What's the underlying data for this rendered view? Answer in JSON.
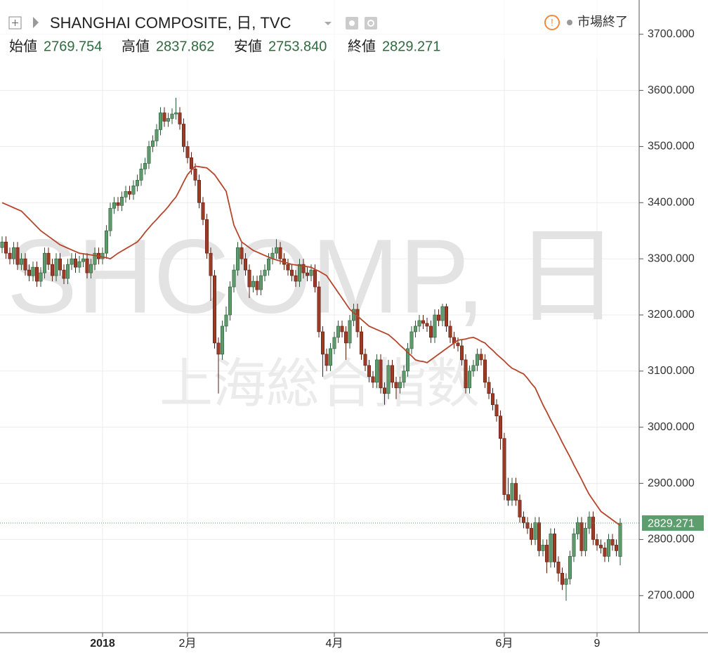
{
  "header": {
    "title": "SHANGHAI COMPOSITE, 日, TVC",
    "status": "市場終了",
    "ohlc_labels": {
      "open": "始値",
      "high": "高値",
      "low": "安値",
      "close": "終値"
    }
  },
  "watermark": {
    "symbol": "SHCOMP, 日",
    "name": "上海総合指数"
  },
  "chart_data": {
    "type": "candlestick",
    "categories": [
      null,
      null,
      null,
      null,
      null,
      null,
      null,
      null,
      null,
      null,
      null,
      null,
      null,
      null,
      null,
      null,
      null,
      null,
      null,
      null,
      null,
      null,
      null,
      null,
      null,
      null,
      "2018",
      null,
      null,
      null,
      null,
      null,
      null,
      null,
      null,
      null,
      null,
      null,
      null,
      null,
      null,
      null,
      null,
      null,
      null,
      null,
      null,
      null,
      "2月",
      null,
      null,
      null,
      null,
      null,
      null,
      null,
      null,
      null,
      null,
      null,
      null,
      null,
      null,
      null,
      null,
      null,
      null,
      null,
      null,
      null,
      null,
      null,
      null,
      null,
      null,
      null,
      null,
      null,
      null,
      null,
      null,
      null,
      null,
      null,
      null,
      null,
      "4月",
      null,
      null,
      null,
      null,
      null,
      null,
      null,
      null,
      null,
      null,
      null,
      null,
      null,
      null,
      null,
      null,
      null,
      null,
      null,
      null,
      null,
      null,
      null,
      null,
      null,
      null,
      null,
      null,
      null,
      null,
      null,
      null,
      null,
      null,
      null,
      null,
      null,
      null,
      null,
      null,
      null,
      null,
      null,
      "6月",
      null,
      null,
      null,
      null,
      null,
      null,
      null,
      null,
      null,
      null,
      null,
      null,
      null,
      null,
      null,
      null,
      null,
      null,
      null,
      null,
      null,
      null,
      null,
      "9",
      null,
      null,
      null,
      null,
      null,
      null,
      null,
      null,
      null,
      null
    ],
    "candles": {
      "open": [
        3320,
        3330,
        3310,
        3300,
        3320,
        3290,
        3300,
        3280,
        3270,
        3285,
        3260,
        3275,
        3310,
        3290,
        3270,
        3300,
        3280,
        3265,
        3290,
        3300,
        3285,
        3295,
        3300,
        3275,
        3290,
        3310,
        3300,
        3310,
        3350,
        3390,
        3400,
        3395,
        3410,
        3420,
        3415,
        3430,
        3440,
        3460,
        3470,
        3500,
        3510,
        3530,
        3560,
        3545,
        3550,
        3558,
        3560,
        3540,
        3500,
        3480,
        3460,
        3440,
        3400,
        3370,
        3310,
        3270,
        3150,
        3130,
        3180,
        3200,
        3250,
        3280,
        3320,
        3300,
        3280,
        3250,
        3260,
        3245,
        3270,
        3280,
        3300,
        3310,
        3320,
        3300,
        3290,
        3280,
        3270,
        3260,
        3290,
        3275,
        3270,
        3280,
        3250,
        3170,
        3130,
        3110,
        3140,
        3160,
        3180,
        3170,
        3150,
        3190,
        3210,
        3170,
        3130,
        3110,
        3090,
        3080,
        3120,
        3070,
        3060,
        3110,
        3080,
        3070,
        3080,
        3100,
        3140,
        3170,
        3180,
        3190,
        3185,
        3180,
        3160,
        3200,
        3190,
        3215,
        3180,
        3160,
        3150,
        3145,
        3120,
        3070,
        3100,
        3110,
        3130,
        3120,
        3080,
        3060,
        3040,
        3020,
        2980,
        2880,
        2870,
        2900,
        2870,
        2840,
        2830,
        2820,
        2800,
        2830,
        2780,
        2790,
        2760,
        2810,
        2760,
        2740,
        2720,
        2730,
        2770,
        2810,
        2830,
        2780,
        2820,
        2840,
        2800,
        2790,
        2785,
        2770,
        2800,
        2790,
        2769.754
      ],
      "high": [
        3340,
        3340,
        3320,
        3330,
        3330,
        3310,
        3310,
        3290,
        3295,
        3295,
        3285,
        3320,
        3320,
        3300,
        3310,
        3310,
        3290,
        3300,
        3310,
        3310,
        3305,
        3310,
        3310,
        3300,
        3320,
        3320,
        3320,
        3360,
        3400,
        3410,
        3410,
        3420,
        3430,
        3430,
        3440,
        3450,
        3470,
        3480,
        3510,
        3520,
        3540,
        3570,
        3570,
        3560,
        3568,
        3587,
        3570,
        3550,
        3510,
        3490,
        3470,
        3450,
        3410,
        3380,
        3320,
        3280,
        3160,
        3190,
        3215,
        3260,
        3290,
        3330,
        3330,
        3310,
        3290,
        3270,
        3270,
        3280,
        3290,
        3310,
        3320,
        3335,
        3330,
        3310,
        3300,
        3290,
        3280,
        3300,
        3300,
        3285,
        3290,
        3290,
        3260,
        3180,
        3140,
        3150,
        3170,
        3190,
        3190,
        3180,
        3200,
        3220,
        3220,
        3180,
        3140,
        3120,
        3100,
        3130,
        3130,
        3080,
        3120,
        3120,
        3090,
        3090,
        3110,
        3150,
        3180,
        3190,
        3200,
        3200,
        3195,
        3190,
        3210,
        3210,
        3220,
        3220,
        3190,
        3170,
        3160,
        3155,
        3130,
        3110,
        3120,
        3140,
        3140,
        3130,
        3090,
        3070,
        3050,
        3030,
        2990,
        2910,
        2910,
        2910,
        2880,
        2850,
        2840,
        2830,
        2840,
        2840,
        2800,
        2800,
        2820,
        2820,
        2770,
        2750,
        2740,
        2780,
        2820,
        2840,
        2840,
        2830,
        2850,
        2850,
        2810,
        2800,
        2795,
        2810,
        2810,
        2800,
        2837.862
      ],
      "low": [
        3310,
        3300,
        3290,
        3290,
        3280,
        3280,
        3270,
        3260,
        3260,
        3250,
        3250,
        3265,
        3280,
        3260,
        3260,
        3270,
        3255,
        3255,
        3280,
        3275,
        3275,
        3285,
        3265,
        3265,
        3280,
        3290,
        3290,
        3300,
        3340,
        3380,
        3385,
        3385,
        3400,
        3405,
        3405,
        3420,
        3430,
        3450,
        3460,
        3490,
        3500,
        3520,
        3535,
        3535,
        3540,
        3548,
        3530,
        3490,
        3470,
        3450,
        3430,
        3390,
        3360,
        3300,
        3225,
        3140,
        3060,
        3120,
        3170,
        3190,
        3240,
        3270,
        3290,
        3270,
        3230,
        3240,
        3235,
        3235,
        3260,
        3270,
        3290,
        3300,
        3290,
        3280,
        3270,
        3260,
        3250,
        3250,
        3265,
        3260,
        3260,
        3240,
        3160,
        3090,
        3100,
        3100,
        3130,
        3150,
        3160,
        3120,
        3140,
        3180,
        3160,
        3120,
        3100,
        3080,
        3070,
        3070,
        3060,
        3040,
        3050,
        3070,
        3050,
        3060,
        3070,
        3090,
        3130,
        3160,
        3170,
        3175,
        3170,
        3150,
        3150,
        3180,
        3180,
        3170,
        3150,
        3140,
        3135,
        3110,
        3060,
        3060,
        3090,
        3100,
        3110,
        3070,
        3050,
        3030,
        3010,
        2960,
        2870,
        2860,
        2860,
        2860,
        2830,
        2820,
        2810,
        2790,
        2790,
        2770,
        2770,
        2740,
        2750,
        2750,
        2725,
        2710,
        2691,
        2720,
        2760,
        2800,
        2770,
        2770,
        2810,
        2790,
        2780,
        2775,
        2760,
        2760,
        2780,
        2770,
        2753.84
      ],
      "close": [
        3330,
        3310,
        3300,
        3320,
        3290,
        3300,
        3280,
        3270,
        3285,
        3260,
        3275,
        3310,
        3290,
        3270,
        3300,
        3280,
        3265,
        3290,
        3300,
        3285,
        3295,
        3300,
        3275,
        3290,
        3310,
        3300,
        3310,
        3350,
        3390,
        3400,
        3395,
        3410,
        3420,
        3415,
        3430,
        3440,
        3460,
        3470,
        3500,
        3510,
        3530,
        3560,
        3545,
        3550,
        3558,
        3560,
        3540,
        3500,
        3480,
        3460,
        3440,
        3400,
        3370,
        3310,
        3270,
        3150,
        3130,
        3180,
        3200,
        3250,
        3280,
        3320,
        3300,
        3280,
        3250,
        3260,
        3245,
        3270,
        3280,
        3300,
        3310,
        3320,
        3300,
        3290,
        3280,
        3270,
        3260,
        3290,
        3275,
        3270,
        3280,
        3250,
        3170,
        3130,
        3110,
        3140,
        3160,
        3180,
        3170,
        3150,
        3190,
        3210,
        3170,
        3130,
        3110,
        3090,
        3080,
        3120,
        3070,
        3060,
        3110,
        3080,
        3070,
        3080,
        3100,
        3140,
        3170,
        3180,
        3190,
        3185,
        3180,
        3160,
        3200,
        3190,
        3215,
        3180,
        3160,
        3150,
        3145,
        3120,
        3070,
        3100,
        3110,
        3130,
        3120,
        3080,
        3060,
        3040,
        3020,
        2980,
        2880,
        2870,
        2900,
        2870,
        2840,
        2830,
        2820,
        2800,
        2830,
        2780,
        2790,
        2760,
        2810,
        2760,
        2740,
        2720,
        2730,
        2770,
        2810,
        2830,
        2780,
        2820,
        2840,
        2800,
        2790,
        2785,
        2770,
        2800,
        2790,
        2780,
        2829.271
      ],
      "up_color": "#5f9a6d",
      "down_color": "#9e3b26"
    },
    "last_labels": {
      "open": "2769.754",
      "high": "2837.862",
      "low": "2753.840",
      "close": "2829.271"
    },
    "moving_average": {
      "color": "#b5452b",
      "values": [
        3400,
        3397,
        3394,
        3391,
        3388,
        3385,
        3378,
        3371,
        3364,
        3357,
        3350,
        3345,
        3340,
        3335,
        3330,
        3325,
        3322,
        3319,
        3316,
        3313,
        3310,
        3309,
        3308,
        3307,
        3306,
        3305,
        3303,
        3302,
        3300,
        3305,
        3310,
        3314,
        3318,
        3322,
        3326,
        3330,
        3338,
        3347,
        3355,
        3363,
        3370,
        3378,
        3385,
        3393,
        3402,
        3410,
        3423,
        3437,
        3450,
        3458,
        3465,
        3464,
        3463,
        3462,
        3456,
        3450,
        3440,
        3430,
        3420,
        3390,
        3360,
        3345,
        3330,
        3325,
        3320,
        3315,
        3312,
        3309,
        3306,
        3303,
        3300,
        3298,
        3296,
        3294,
        3292,
        3290,
        3289,
        3288,
        3287,
        3286,
        3285,
        3281,
        3278,
        3274,
        3270,
        3260,
        3250,
        3240,
        3230,
        3220,
        3210,
        3204,
        3198,
        3192,
        3186,
        3180,
        3177,
        3174,
        3171,
        3168,
        3165,
        3159,
        3153,
        3146,
        3140,
        3133,
        3127,
        3120,
        3118,
        3117,
        3115,
        3120,
        3125,
        3130,
        3135,
        3140,
        3145,
        3150,
        3155,
        3156,
        3157,
        3159,
        3160,
        3157,
        3153,
        3150,
        3143,
        3137,
        3130,
        3124,
        3118,
        3111,
        3105,
        3102,
        3098,
        3095,
        3087,
        3078,
        3070,
        3055,
        3040,
        3027,
        3013,
        3000,
        2987,
        2973,
        2960,
        2947,
        2933,
        2920,
        2907,
        2893,
        2880,
        2870,
        2860,
        2850,
        2845,
        2840,
        2835,
        2830,
        2825
      ]
    },
    "ylim": [
      2634,
      3761
    ],
    "yticks": [
      {
        "value": 2700,
        "label": "2700.000"
      },
      {
        "value": 2800,
        "label": "2800.000"
      },
      {
        "value": 2900,
        "label": "2900.000"
      },
      {
        "value": 3000,
        "label": "3000.000"
      },
      {
        "value": 3100,
        "label": "3100.000"
      },
      {
        "value": 3200,
        "label": "3200.000"
      },
      {
        "value": 3300,
        "label": "3300.000"
      },
      {
        "value": 3400,
        "label": "3400.000"
      },
      {
        "value": 3500,
        "label": "3500.000"
      },
      {
        "value": 3600,
        "label": "3600.000"
      },
      {
        "value": 3700,
        "label": "3700.000"
      }
    ],
    "grid": true
  }
}
